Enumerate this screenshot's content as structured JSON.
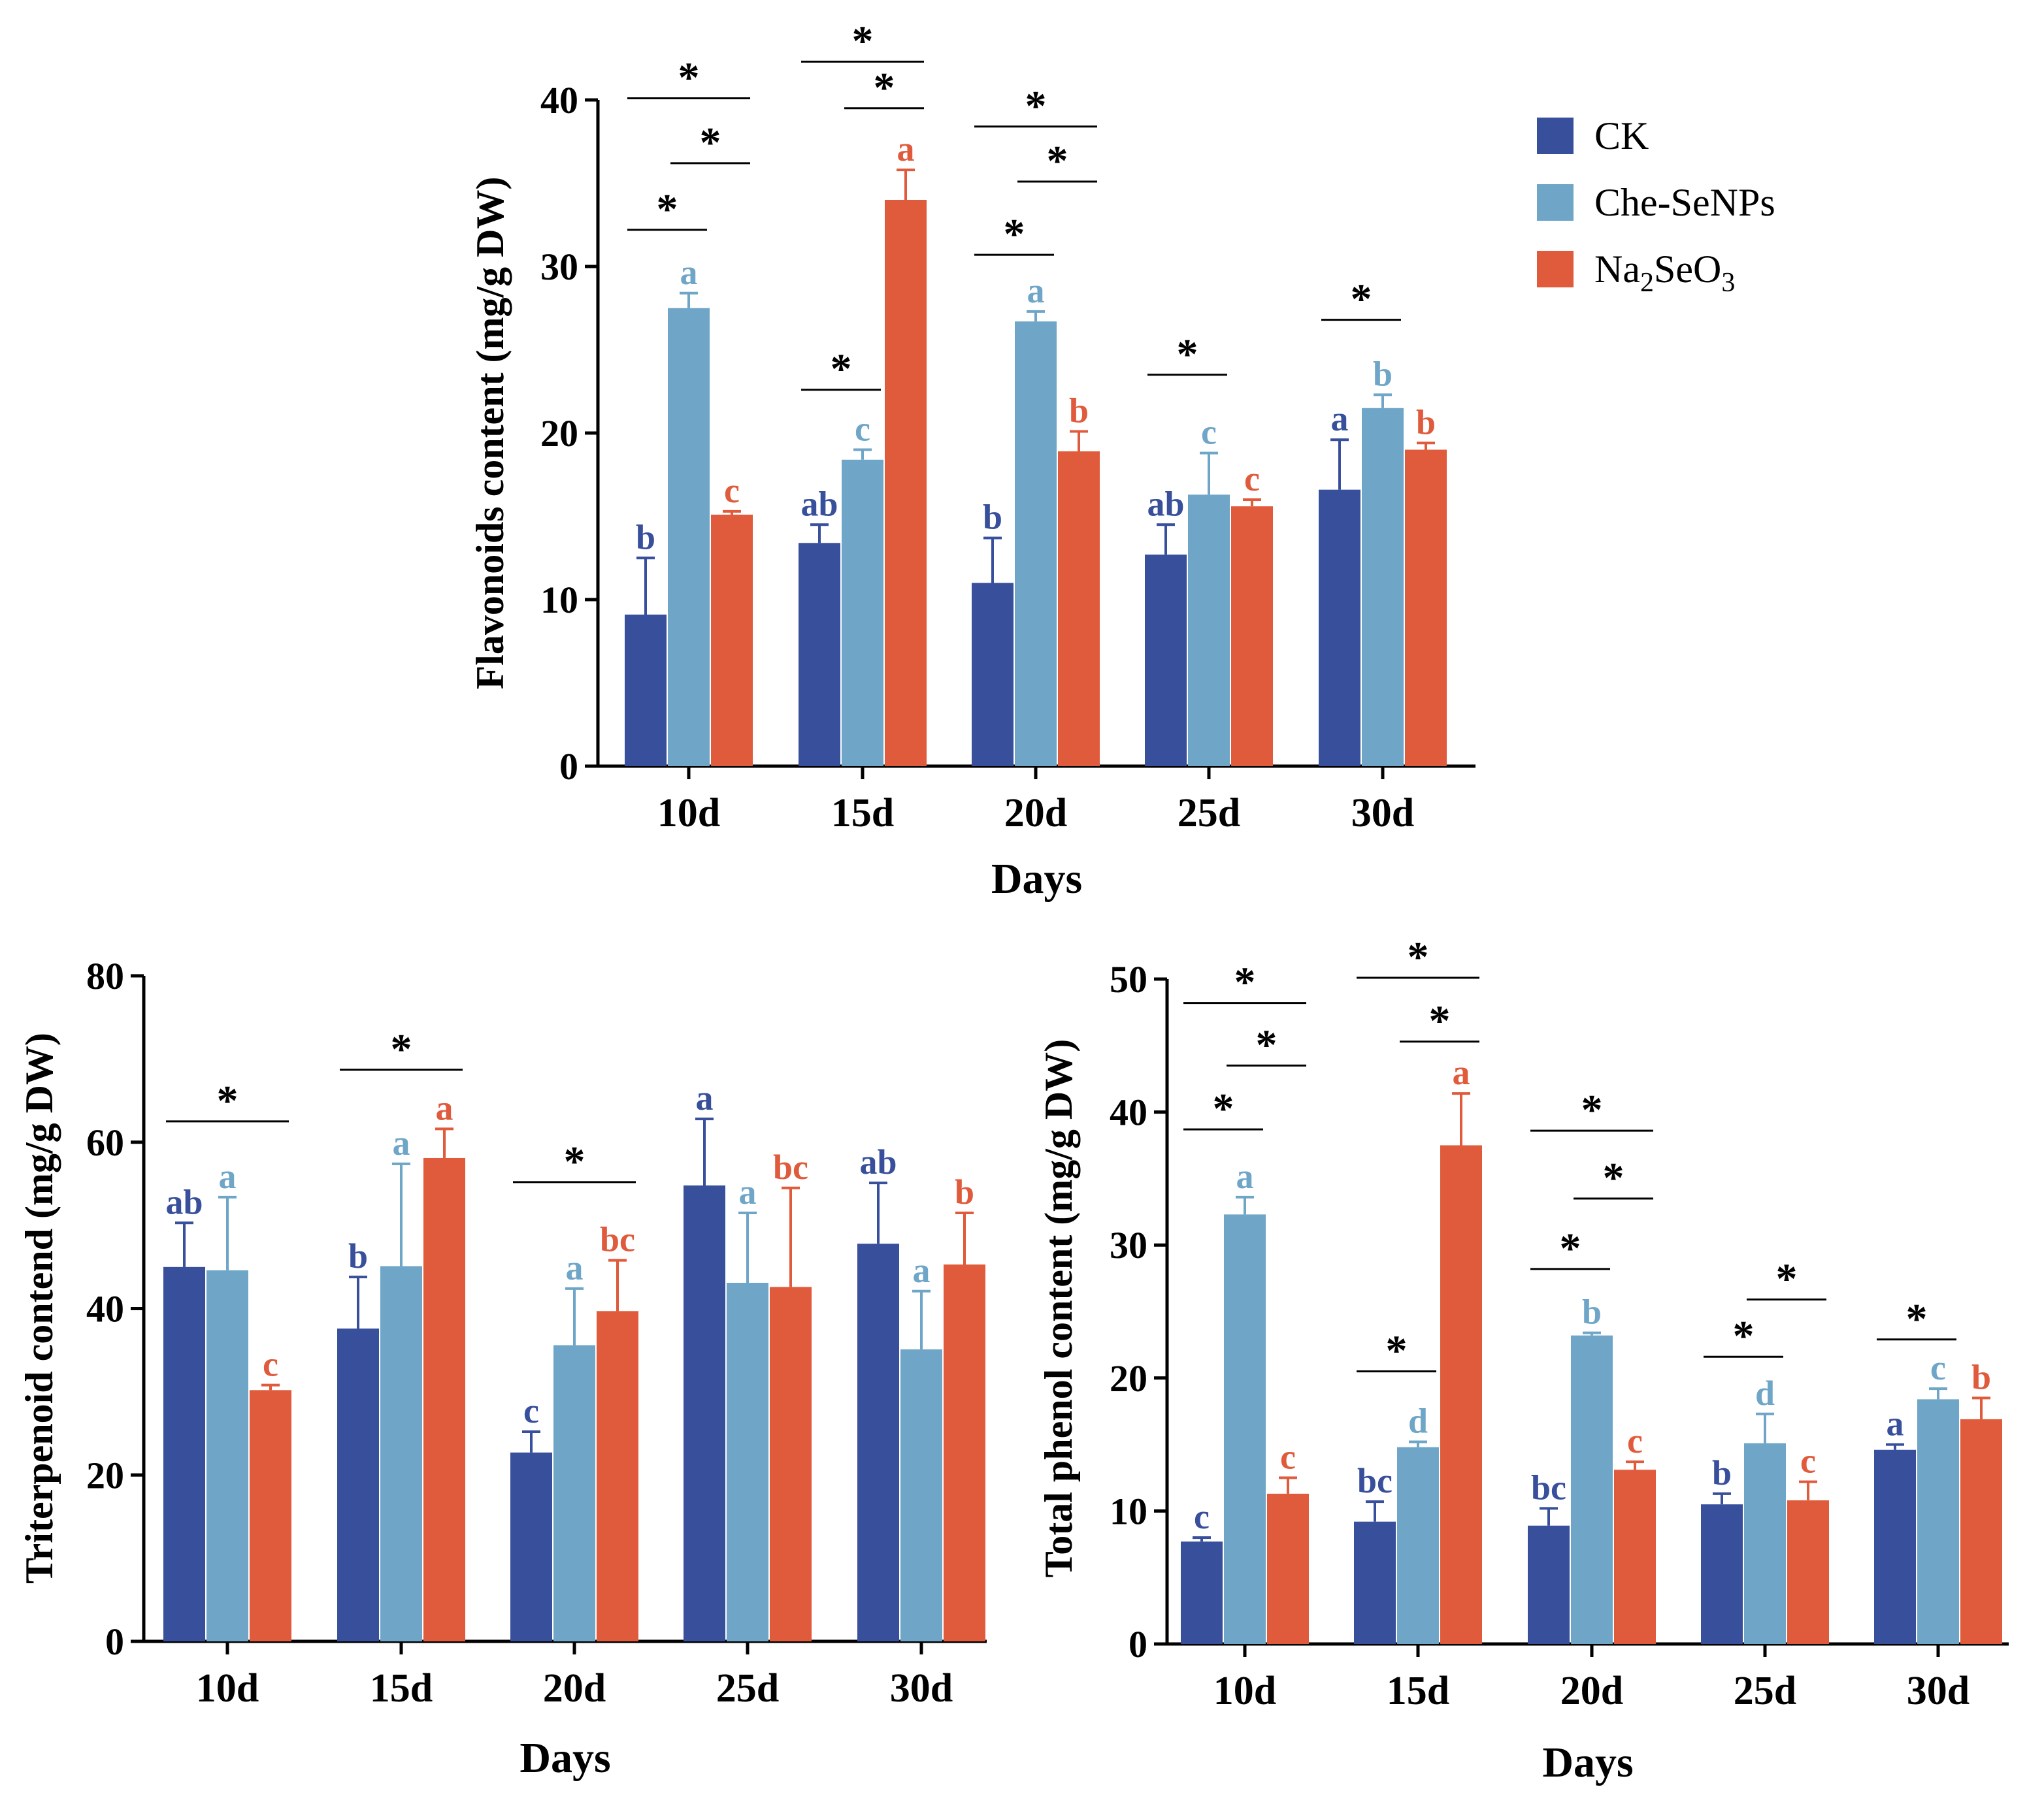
{
  "colors": {
    "CK": "#384f9b",
    "Che-SeNPs": "#6fa6c8",
    "Na2SeO3": "#e05a3c"
  },
  "legend": [
    {
      "key": "CK",
      "text": "CK"
    },
    {
      "key": "Che-SeNPs",
      "text": "Che-SeNPs"
    },
    {
      "key": "Na2SeO3",
      "text": "Na",
      "sub1": "2",
      "mid": "SeO",
      "sub2": "3"
    }
  ],
  "chart_data": [
    {
      "id": "flavonoids",
      "type": "bar",
      "ylabel": "Flavonoids content (mg/g DW)",
      "xlabel": "Days",
      "categories": [
        "10d",
        "15d",
        "20d",
        "25d",
        "30d"
      ],
      "ylim": [
        0,
        40
      ],
      "yticks": [
        0,
        10,
        20,
        30,
        40
      ],
      "series": [
        {
          "name": "CK",
          "values": [
            9.1,
            13.4,
            11.0,
            12.7,
            16.6
          ],
          "errors": [
            3.4,
            1.1,
            2.7,
            1.8,
            3.0
          ],
          "letters": [
            "b",
            "ab",
            "b",
            "ab",
            "a"
          ]
        },
        {
          "name": "Che-SeNPs",
          "values": [
            27.5,
            18.4,
            26.7,
            16.3,
            21.5
          ],
          "errors": [
            0.9,
            0.6,
            0.6,
            2.5,
            0.8
          ],
          "letters": [
            "a",
            "c",
            "a",
            "c",
            "b"
          ]
        },
        {
          "name": "Na2SeO3",
          "values": [
            15.1,
            34.0,
            18.9,
            15.6,
            19.0
          ],
          "errors": [
            0.2,
            1.8,
            1.2,
            0.4,
            0.4
          ],
          "letters": [
            "c",
            "a",
            "b",
            "c",
            "b"
          ]
        }
      ],
      "significance": [
        {
          "cat": 0,
          "from": 0,
          "to": 2,
          "y": 40.1,
          "label": "*"
        },
        {
          "cat": 0,
          "from": 1,
          "to": 2,
          "y": 36.2,
          "label": "*"
        },
        {
          "cat": 0,
          "from": 0,
          "to": 1,
          "y": 32.2,
          "label": "*"
        },
        {
          "cat": 1,
          "from": 0,
          "to": 2,
          "y": 42.3,
          "label": "*"
        },
        {
          "cat": 1,
          "from": 1,
          "to": 2,
          "y": 39.5,
          "label": "*"
        },
        {
          "cat": 1,
          "from": 0,
          "to": 1,
          "y": 22.6,
          "label": "*"
        },
        {
          "cat": 2,
          "from": 0,
          "to": 2,
          "y": 38.4,
          "label": "*"
        },
        {
          "cat": 2,
          "from": 1,
          "to": 2,
          "y": 35.1,
          "label": "*"
        },
        {
          "cat": 2,
          "from": 0,
          "to": 1,
          "y": 30.7,
          "label": "*"
        },
        {
          "cat": 3,
          "from": 0,
          "to": 1,
          "y": 23.5,
          "label": "*"
        },
        {
          "cat": 4,
          "from": 0,
          "to": 1,
          "y": 26.8,
          "label": "*"
        }
      ]
    },
    {
      "id": "triterpenoid",
      "type": "bar",
      "ylabel": "Triterpenoid contend (mg/g DW)",
      "xlabel": "Days",
      "categories": [
        "10d",
        "15d",
        "20d",
        "25d",
        "30d"
      ],
      "ylim": [
        0,
        80
      ],
      "yticks": [
        0,
        20,
        40,
        60,
        80
      ],
      "series": [
        {
          "name": "CK",
          "values": [
            45.0,
            37.6,
            22.7,
            54.8,
            47.8
          ],
          "errors": [
            5.3,
            6.2,
            2.5,
            8.0,
            7.3
          ],
          "letters": [
            "ab",
            "b",
            "c",
            "a",
            "ab"
          ]
        },
        {
          "name": "Che-SeNPs",
          "values": [
            44.6,
            45.1,
            35.6,
            43.1,
            35.1
          ],
          "errors": [
            8.8,
            12.3,
            6.8,
            8.4,
            7.0
          ],
          "letters": [
            "a",
            "a",
            "a",
            "a",
            "a"
          ]
        },
        {
          "name": "Na2SeO3",
          "values": [
            30.2,
            58.1,
            39.7,
            42.6,
            45.3
          ],
          "errors": [
            0.6,
            3.5,
            6.1,
            11.9,
            6.2
          ],
          "letters": [
            "c",
            "a",
            "bc",
            "bc",
            "b"
          ]
        }
      ],
      "significance": [
        {
          "cat": 0,
          "from": 0,
          "to": 2,
          "y": 62.5,
          "label": "*"
        },
        {
          "cat": 1,
          "from": 0,
          "to": 2,
          "y": 68.7,
          "label": "*"
        },
        {
          "cat": 2,
          "from": 0,
          "to": 2,
          "y": 55.2,
          "label": "*"
        }
      ]
    },
    {
      "id": "phenol",
      "type": "bar",
      "ylabel": "Total phenol content (mg/g DW)",
      "xlabel": "Days",
      "categories": [
        "10d",
        "15d",
        "20d",
        "25d",
        "30d"
      ],
      "ylim": [
        0,
        50
      ],
      "yticks": [
        0,
        10,
        20,
        30,
        40,
        50
      ],
      "series": [
        {
          "name": "CK",
          "values": [
            7.7,
            9.2,
            8.9,
            10.5,
            14.6
          ],
          "errors": [
            0.3,
            1.5,
            1.3,
            0.8,
            0.4
          ],
          "letters": [
            "c",
            "bc",
            "bc",
            "b",
            "a"
          ]
        },
        {
          "name": "Che-SeNPs",
          "values": [
            32.3,
            14.8,
            23.2,
            15.1,
            18.4
          ],
          "errors": [
            1.3,
            0.4,
            0.2,
            2.2,
            0.8
          ],
          "letters": [
            "a",
            "d",
            "b",
            "d",
            "c"
          ]
        },
        {
          "name": "Na2SeO3",
          "values": [
            11.3,
            37.5,
            13.1,
            10.8,
            16.9
          ],
          "errors": [
            1.2,
            3.9,
            0.6,
            1.4,
            1.6
          ],
          "letters": [
            "c",
            "a",
            "c",
            "c",
            "b"
          ]
        }
      ],
      "significance": [
        {
          "cat": 0,
          "from": 0,
          "to": 2,
          "y": 48.2,
          "label": "*"
        },
        {
          "cat": 0,
          "from": 1,
          "to": 2,
          "y": 43.5,
          "label": "*"
        },
        {
          "cat": 0,
          "from": 0,
          "to": 1,
          "y": 38.7,
          "label": "*"
        },
        {
          "cat": 1,
          "from": 0,
          "to": 2,
          "y": 50.1,
          "label": "*"
        },
        {
          "cat": 1,
          "from": 1,
          "to": 2,
          "y": 45.3,
          "label": "*"
        },
        {
          "cat": 1,
          "from": 0,
          "to": 1,
          "y": 20.5,
          "label": "*"
        },
        {
          "cat": 2,
          "from": 0,
          "to": 2,
          "y": 38.6,
          "label": "*"
        },
        {
          "cat": 2,
          "from": 1,
          "to": 2,
          "y": 33.5,
          "label": "*"
        },
        {
          "cat": 2,
          "from": 0,
          "to": 1,
          "y": 28.2,
          "label": "*"
        },
        {
          "cat": 3,
          "from": 1,
          "to": 2,
          "y": 25.9,
          "label": "*"
        },
        {
          "cat": 3,
          "from": 0,
          "to": 1,
          "y": 21.6,
          "label": "*"
        },
        {
          "cat": 4,
          "from": 0,
          "to": 1,
          "y": 22.9,
          "label": "*"
        }
      ]
    }
  ]
}
